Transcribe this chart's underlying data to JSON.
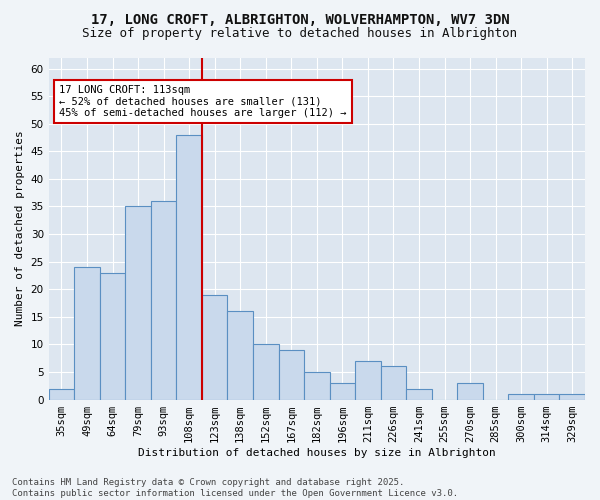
{
  "title_line1": "17, LONG CROFT, ALBRIGHTON, WOLVERHAMPTON, WV7 3DN",
  "title_line2": "Size of property relative to detached houses in Albrighton",
  "xlabel": "Distribution of detached houses by size in Albrighton",
  "ylabel": "Number of detached properties",
  "categories": [
    "35sqm",
    "49sqm",
    "64sqm",
    "79sqm",
    "93sqm",
    "108sqm",
    "123sqm",
    "138sqm",
    "152sqm",
    "167sqm",
    "182sqm",
    "196sqm",
    "211sqm",
    "226sqm",
    "241sqm",
    "255sqm",
    "270sqm",
    "285sqm",
    "300sqm",
    "314sqm",
    "329sqm"
  ],
  "values": [
    2,
    24,
    23,
    35,
    36,
    48,
    19,
    16,
    10,
    9,
    5,
    3,
    7,
    6,
    2,
    0,
    3,
    0,
    1,
    1,
    1
  ],
  "bar_color": "#c9d9ec",
  "bar_edge_color": "#5a8fc2",
  "ref_line_color": "#cc0000",
  "annotation_text": "17 LONG CROFT: 113sqm\n← 52% of detached houses are smaller (131)\n45% of semi-detached houses are larger (112) →",
  "annotation_box_color": "#ffffff",
  "annotation_box_edge": "#cc0000",
  "ylim": [
    0,
    62
  ],
  "yticks": [
    0,
    5,
    10,
    15,
    20,
    25,
    30,
    35,
    40,
    45,
    50,
    55,
    60
  ],
  "bg_color": "#dde6f0",
  "fig_bg_color": "#f0f4f8",
  "footer_text": "Contains HM Land Registry data © Crown copyright and database right 2025.\nContains public sector information licensed under the Open Government Licence v3.0.",
  "title_fontsize": 10,
  "subtitle_fontsize": 9,
  "axis_label_fontsize": 8,
  "tick_fontsize": 7.5,
  "annotation_fontsize": 7.5,
  "footer_fontsize": 6.5
}
